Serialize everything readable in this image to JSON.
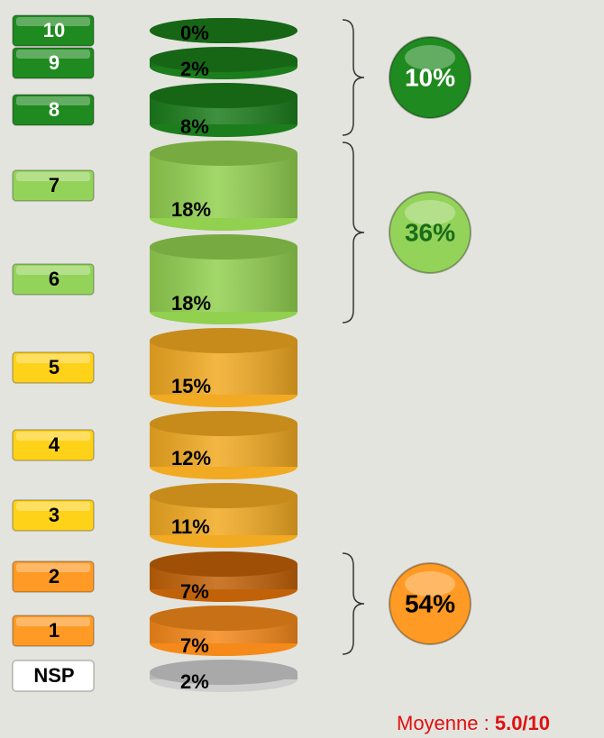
{
  "chart_data": {
    "type": "cylinder-stack",
    "categories": [
      "10",
      "9",
      "8",
      "7",
      "6",
      "5",
      "4",
      "3",
      "2",
      "1",
      "NSP"
    ],
    "values": [
      0,
      2,
      8,
      18,
      18,
      15,
      12,
      11,
      7,
      7,
      2
    ],
    "value_labels": [
      "0%",
      "2%",
      "8%",
      "18%",
      "18%",
      "15%",
      "12%",
      "11%",
      "7%",
      "7%",
      "2%"
    ],
    "colors": [
      "#1c7d1c",
      "#1c7d1c",
      "#1c7d1c",
      "#92d050",
      "#92d050",
      "#f2aa22",
      "#f2aa22",
      "#f2aa22",
      "#c26208",
      "#f5891a",
      "#cfcfcf"
    ],
    "label_colors": [
      "#1f8a1f",
      "#1f8a1f",
      "#1f8a1f",
      "#94d35a",
      "#94d35a",
      "#ffd21a",
      "#ffd21a",
      "#ffd21a",
      "#ff9a24",
      "#ff9a24",
      "#ffffff"
    ],
    "label_text_colors": [
      "#ffffff",
      "#ffffff",
      "#ffffff",
      "#000000",
      "#000000",
      "#000000",
      "#000000",
      "#000000",
      "#000000",
      "#000000",
      "#000000"
    ],
    "groups": [
      {
        "value": 10,
        "label": "10%",
        "color": "#1f8a1f",
        "text_color": "#ffffff"
      },
      {
        "value": 36,
        "label": "36%",
        "color": "#94d35a",
        "text_color": "#1a6b1a"
      },
      {
        "value": 54,
        "label": "54%",
        "color": "#ff9a24",
        "text_color": "#000000"
      }
    ],
    "annotation": {
      "text": "Moyenne : ",
      "value": "5.0/10"
    }
  }
}
